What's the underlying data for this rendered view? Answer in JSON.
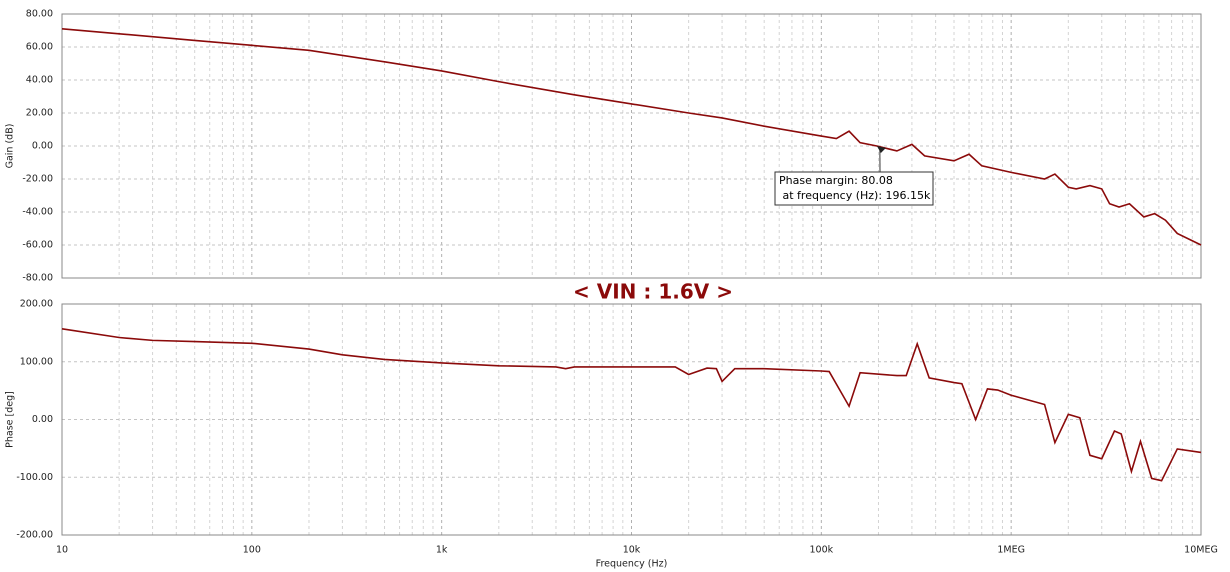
{
  "title": "< VIN : 1.6V >",
  "chart_data": [
    {
      "type": "line",
      "ylabel": "Gain (dB)",
      "xscale": "log",
      "xlim": [
        10,
        10000000
      ],
      "ylim": [
        -80,
        80
      ],
      "yticks": [
        {
          "value": -80,
          "label": "-80.00"
        },
        {
          "value": -60,
          "label": "-60.00"
        },
        {
          "value": -40,
          "label": "-40.00"
        },
        {
          "value": -20,
          "label": "-20.00"
        },
        {
          "value": 0,
          "label": "0.00"
        },
        {
          "value": 20,
          "label": "20.00"
        },
        {
          "value": 40,
          "label": "40.00"
        },
        {
          "value": 60,
          "label": "60.00"
        },
        {
          "value": 80,
          "label": "80.00"
        }
      ],
      "grid": true,
      "color": "#8b0a0a",
      "x": [
        10,
        20,
        50,
        100,
        200,
        500,
        1000,
        2000,
        5000,
        10000,
        20000,
        30000,
        50000,
        100000,
        120000,
        140000,
        160000,
        196150,
        250000,
        300000,
        350000,
        500000,
        600000,
        700000,
        1000000,
        1500000,
        1700000,
        2000000,
        2200000,
        2600000,
        3000000,
        3300000,
        3700000,
        4200000,
        5000000,
        5700000,
        6500000,
        7500000,
        10000000
      ],
      "values": [
        71,
        68,
        64,
        61,
        58,
        51,
        45.5,
        39,
        31,
        25.5,
        20,
        17,
        12,
        6,
        4.5,
        9,
        2,
        0,
        -3,
        1,
        -6,
        -9,
        -5,
        -12,
        -16,
        -20,
        -17,
        -25,
        -26,
        -24,
        -26,
        -35,
        -37,
        -35,
        -43,
        -41,
        -45,
        -53,
        -60
      ],
      "annotation": [
        "Phase margin: 80.08",
        " at frequency (Hz): 196.15k"
      ]
    },
    {
      "type": "line",
      "ylabel": "Phase [deg]",
      "xlabel": "Frequency (Hz)",
      "xscale": "log",
      "xlim": [
        10,
        10000000
      ],
      "ylim": [
        -200,
        200
      ],
      "yticks": [
        {
          "value": -200,
          "label": "-200.00"
        },
        {
          "value": -100,
          "label": "-100.00"
        },
        {
          "value": 0,
          "label": "0.00"
        },
        {
          "value": 100,
          "label": "100.00"
        },
        {
          "value": 200,
          "label": "200.00"
        }
      ],
      "xticks": [
        10,
        100,
        {
          "value": 1000,
          "label": "1k"
        },
        {
          "value": 10000,
          "label": "10k"
        },
        {
          "value": 100000,
          "label": "100k"
        },
        {
          "value": 1000000,
          "label": "1MEG"
        },
        {
          "value": 10000000,
          "label": "10MEG"
        }
      ],
      "grid": true,
      "color": "#8b0a0a",
      "x": [
        10,
        20,
        30,
        50,
        100,
        200,
        300,
        500,
        1000,
        2000,
        4000,
        4500,
        5000,
        10000,
        17000,
        20000,
        25000,
        28000,
        30000,
        35000,
        50000,
        100000,
        110000,
        140000,
        160000,
        250000,
        280000,
        320000,
        370000,
        500000,
        550000,
        650000,
        750000,
        850000,
        1000000,
        1500000,
        1700000,
        2000000,
        2300000,
        2600000,
        3000000,
        3500000,
        3800000,
        4300000,
        4800000,
        5500000,
        6200000,
        7500000,
        10000000
      ],
      "values": [
        157,
        142,
        137,
        135,
        132,
        122,
        112,
        104,
        98,
        93,
        91,
        88,
        91,
        91,
        91,
        78,
        89,
        88,
        66,
        88,
        88,
        84,
        83,
        23,
        81,
        76,
        76,
        131,
        72,
        64,
        62,
        0,
        53,
        51,
        42,
        26,
        -40,
        9,
        3,
        -62,
        -68,
        -20,
        -25,
        -90,
        -38,
        -102,
        -106,
        -51,
        -57
      ]
    }
  ]
}
